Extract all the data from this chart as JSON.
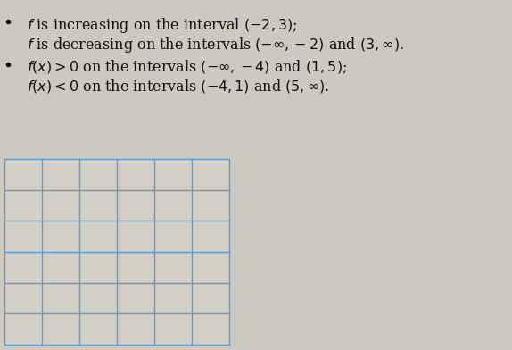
{
  "background_color": "#cdc9c0",
  "grid_color": "#5b9bd5",
  "grid_linewidth": 1.0,
  "grid_fill": "#d4cfc6",
  "grid_rows": 6,
  "grid_cols": 6,
  "text_color": "#111111",
  "text_fontsize": 11.5,
  "bullet_fontsize": 11.5
}
